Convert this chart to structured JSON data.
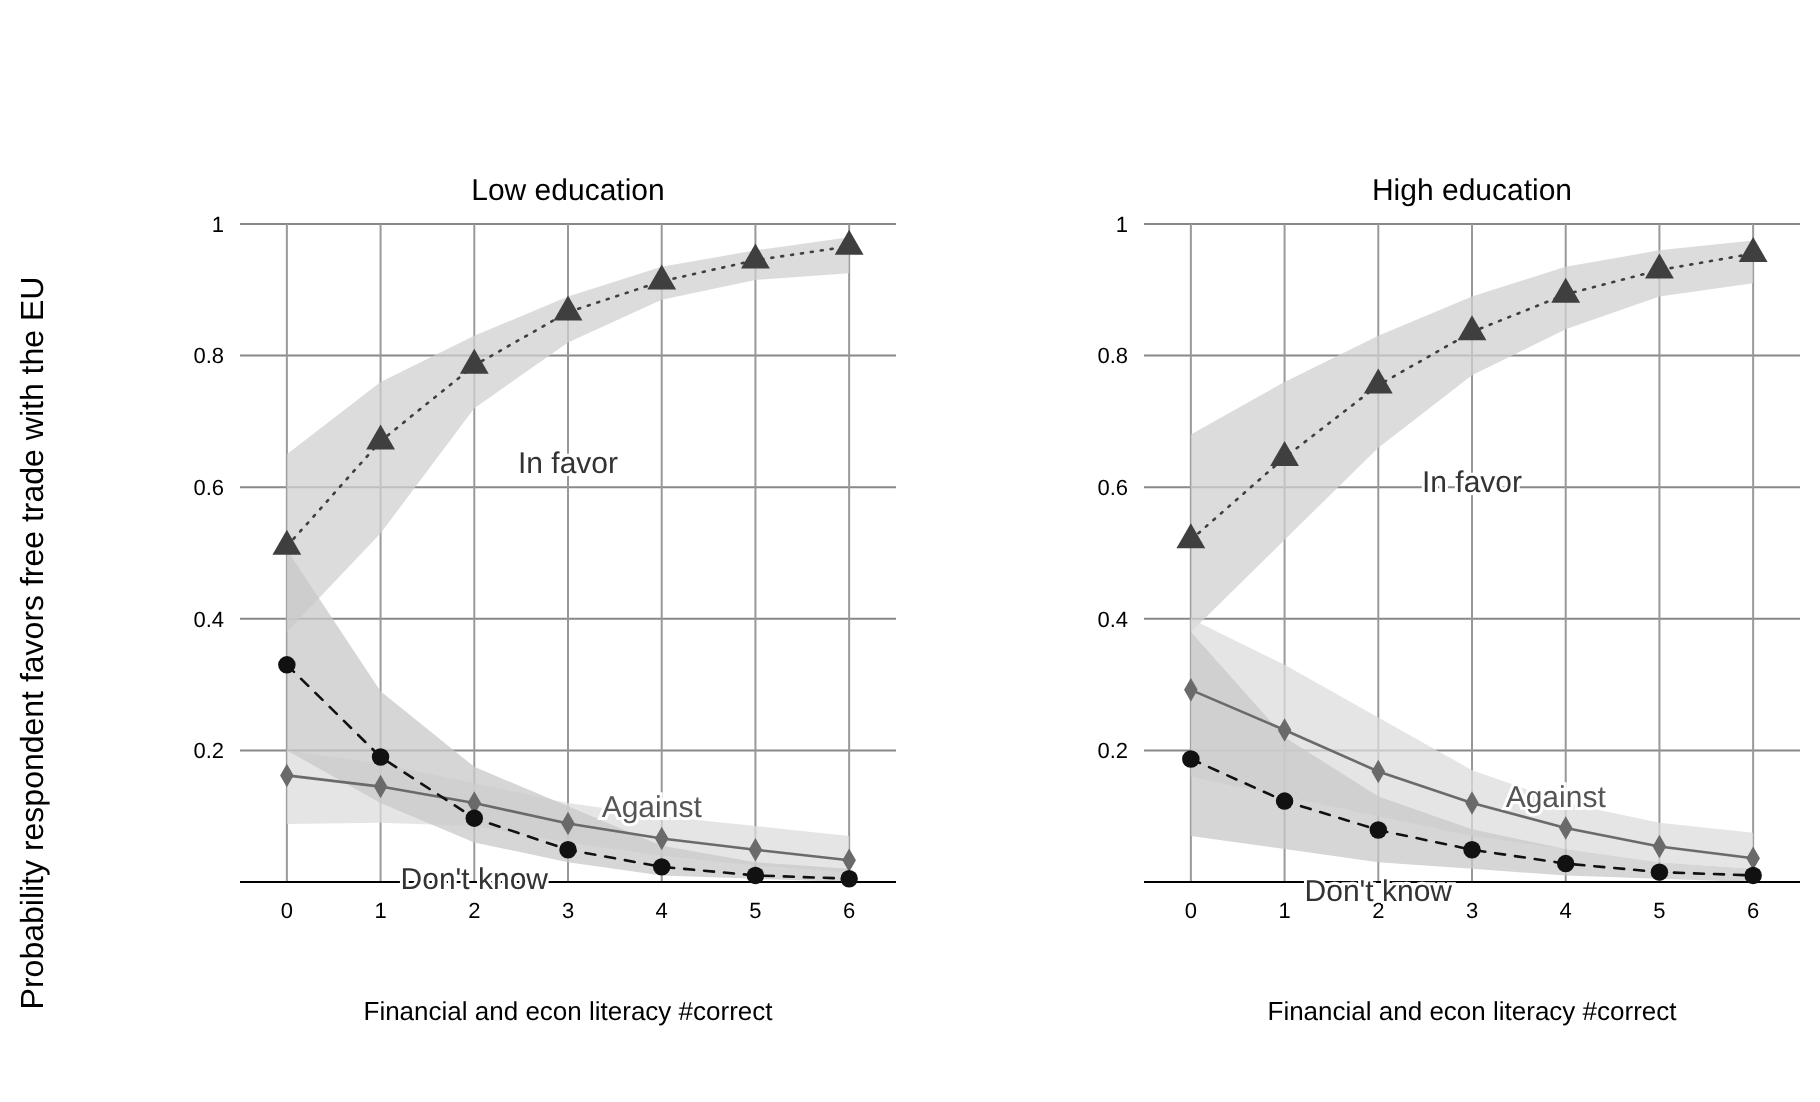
{
  "chart_data": [
    {
      "type": "line",
      "title": "Low education",
      "xlabel": "Financial and econ literacy #correct",
      "ylabel": "Probability respondent favors free trade with the EU",
      "x": [
        0,
        1,
        2,
        3,
        4,
        5,
        6
      ],
      "xlim": [
        -0.5,
        6.5
      ],
      "xticks": [
        0,
        1,
        2,
        3,
        4,
        5,
        6
      ],
      "ylim": [
        0,
        1
      ],
      "yticks": [
        0.2,
        0.4,
        0.6,
        0.8,
        1
      ],
      "grid": true,
      "series": [
        {
          "name": "In favor",
          "color": "#3f3f3f",
          "marker": "triangle",
          "line_style": "dotted",
          "values": [
            0.51,
            0.67,
            0.785,
            0.866,
            0.913,
            0.945,
            0.966
          ],
          "lower": [
            0.38,
            0.53,
            0.72,
            0.82,
            0.885,
            0.915,
            0.925
          ],
          "upper": [
            0.65,
            0.76,
            0.83,
            0.89,
            0.935,
            0.96,
            0.98
          ]
        },
        {
          "name": "Against",
          "color": "#6a6a6a",
          "marker": "diamond",
          "line_style": "solid",
          "values": [
            0.162,
            0.145,
            0.12,
            0.089,
            0.066,
            0.049,
            0.033
          ],
          "lower": [
            0.088,
            0.09,
            0.085,
            0.06,
            0.04,
            0.025,
            0.015
          ],
          "upper": [
            0.2,
            0.18,
            0.15,
            0.12,
            0.1,
            0.085,
            0.07
          ]
        },
        {
          "name": "Don't know",
          "color": "#111111",
          "marker": "circle",
          "line_style": "dashed",
          "values": [
            0.33,
            0.19,
            0.097,
            0.049,
            0.023,
            0.01,
            0.005
          ],
          "lower": [
            0.2,
            0.12,
            0.06,
            0.03,
            0.01,
            0.005,
            0
          ],
          "upper": [
            0.505,
            0.29,
            0.175,
            0.115,
            0.055,
            0.03,
            0.02
          ]
        }
      ]
    },
    {
      "type": "line",
      "title": "High education",
      "xlabel": "Financial and econ literacy #correct",
      "x": [
        0,
        1,
        2,
        3,
        4,
        5,
        6
      ],
      "xlim": [
        -0.5,
        6.5
      ],
      "xticks": [
        0,
        1,
        2,
        3,
        4,
        5,
        6
      ],
      "ylim": [
        0,
        1
      ],
      "yticks": [
        0.2,
        0.4,
        0.6,
        0.8,
        1
      ],
      "grid": true,
      "series": [
        {
          "name": "In favor",
          "color": "#3f3f3f",
          "marker": "triangle",
          "line_style": "dotted",
          "values": [
            0.52,
            0.645,
            0.755,
            0.836,
            0.893,
            0.93,
            0.955
          ],
          "lower": [
            0.38,
            0.52,
            0.66,
            0.77,
            0.84,
            0.89,
            0.91
          ],
          "upper": [
            0.68,
            0.76,
            0.83,
            0.89,
            0.935,
            0.96,
            0.975
          ]
        },
        {
          "name": "Against",
          "color": "#6a6a6a",
          "marker": "diamond",
          "line_style": "solid",
          "values": [
            0.292,
            0.231,
            0.168,
            0.12,
            0.082,
            0.054,
            0.036
          ],
          "lower": [
            0.16,
            0.13,
            0.1,
            0.07,
            0.05,
            0.03,
            0.02
          ],
          "upper": [
            0.4,
            0.33,
            0.25,
            0.17,
            0.12,
            0.09,
            0.075
          ]
        },
        {
          "name": "Don't know",
          "color": "#111111",
          "marker": "circle",
          "line_style": "dashed",
          "values": [
            0.187,
            0.123,
            0.079,
            0.049,
            0.028,
            0.015,
            0.01
          ],
          "lower": [
            0.07,
            0.05,
            0.03,
            0.02,
            0.01,
            0.005,
            0
          ],
          "upper": [
            0.38,
            0.22,
            0.13,
            0.08,
            0.05,
            0.03,
            0.02
          ]
        }
      ]
    }
  ]
}
